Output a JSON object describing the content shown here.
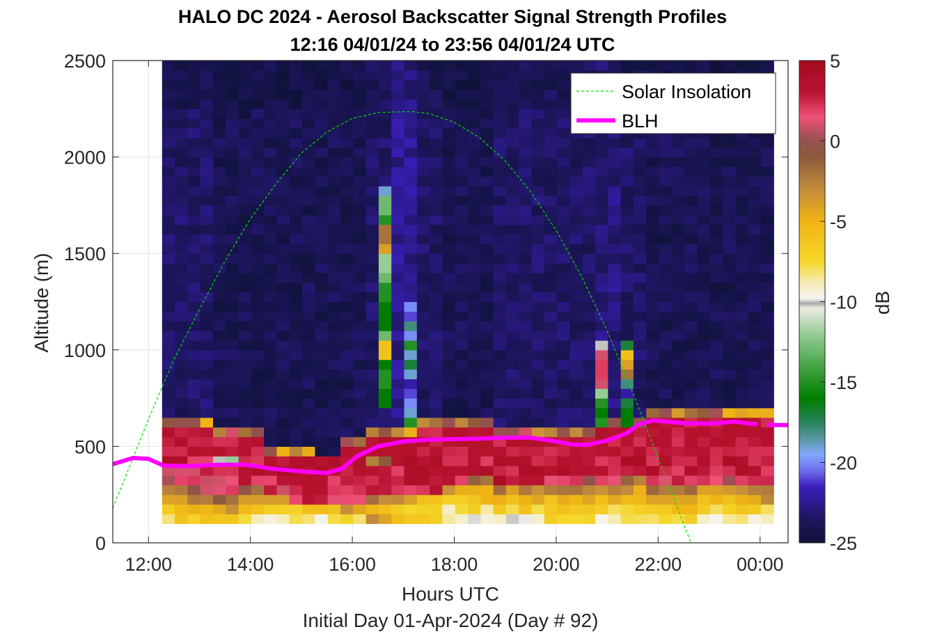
{
  "chart_data": {
    "type": "heatmap",
    "title": "HALO DC 2024 - Aerosol Backscatter Signal Strength Profiles",
    "subtitle": "12:16 04/01/24 to 23:56 04/01/24  UTC",
    "xlabel": "Hours UTC",
    "xsublabel": "Initial Day 01-Apr-2024 (Day # 92)",
    "ylabel": "Altitude (m)",
    "colorbar_label": "dB",
    "xlim_hours": [
      11.3,
      24.55
    ],
    "ylim": [
      0,
      2500
    ],
    "x_ticks": [
      {
        "value": 12,
        "label": "12:00"
      },
      {
        "value": 14,
        "label": "14:00"
      },
      {
        "value": 16,
        "label": "16:00"
      },
      {
        "value": 18,
        "label": "18:00"
      },
      {
        "value": 20,
        "label": "20:00"
      },
      {
        "value": 22,
        "label": "22:00"
      },
      {
        "value": 24,
        "label": "00:00"
      }
    ],
    "y_ticks": [
      0,
      500,
      1000,
      1500,
      2000,
      2500
    ],
    "colorbar_ticks": [
      5,
      0,
      -5,
      -10,
      -15,
      -20,
      -25
    ],
    "clim": [
      -25,
      5
    ],
    "grid": true,
    "legend_position": "top-right",
    "legend": [
      {
        "label": "Solar Insolation",
        "color": "#00dd00",
        "style": "dashed"
      },
      {
        "label": "BLH",
        "color": "#ff00ff",
        "style": "solid"
      }
    ],
    "heatmap": {
      "x_start_hours": 12.27,
      "bin_hours": 0.5,
      "bins_per_column": 2,
      "y_start_m": 100,
      "bin_m": 50,
      "nlevels": 48,
      "units": "dB",
      "columns": [
        {
          "time": "12:16",
          "surface": [
            -7,
            -6,
            -3,
            -2,
            1,
            2,
            3
          ],
          "bl_top": 620,
          "aloft": -23.5
        },
        {
          "time": "12:46",
          "surface": [
            -6,
            -5,
            -2,
            0,
            2,
            2,
            3
          ],
          "bl_top": 610,
          "aloft": -23.5
        },
        {
          "time": "13:16",
          "surface": [
            -6,
            -4,
            -2,
            1,
            2,
            3,
            -11
          ],
          "bl_top": 590,
          "aloft": -24
        },
        {
          "time": "13:46",
          "surface": [
            -8,
            -6,
            -4,
            -1,
            2,
            3,
            3
          ],
          "bl_top": 560,
          "aloft": -24
        },
        {
          "time": "14:16",
          "surface": [
            -9,
            -7,
            -4,
            2,
            3,
            3,
            3
          ],
          "bl_top": 480,
          "aloft": -24
        },
        {
          "time": "14:46",
          "surface": [
            -9,
            -6,
            2,
            3,
            3,
            3,
            3
          ],
          "bl_top": 460,
          "aloft": -24
        },
        {
          "time": "15:16",
          "surface": [
            -9,
            -6,
            2,
            3,
            3,
            3,
            3
          ],
          "bl_top": 440,
          "aloft": -24
        },
        {
          "time": "15:46",
          "surface": [
            -8,
            -4,
            1,
            3,
            3,
            3,
            3
          ],
          "bl_top": 520,
          "aloft": -24
        },
        {
          "time": "16:16",
          "surface": [
            -4,
            -5,
            -3,
            3,
            3,
            3,
            -2
          ],
          "bl_top": 600,
          "aloft": -23.5
        },
        {
          "time": "16:46",
          "surface": [
            -6,
            -8,
            -4,
            3,
            3,
            3,
            3
          ],
          "bl_top": 560,
          "aloft": -22.5
        },
        {
          "time": "17:16",
          "surface": [
            -7,
            -8,
            -6,
            3,
            3,
            3,
            3
          ],
          "bl_top": 630,
          "aloft": -23.5
        },
        {
          "time": "17:46",
          "surface": [
            -9,
            -8,
            -6,
            -4,
            2,
            3,
            3
          ],
          "bl_top": 640,
          "aloft": -24
        },
        {
          "time": "18:16",
          "surface": [
            -9,
            -8,
            -6,
            -4,
            -2,
            3,
            3
          ],
          "bl_top": 620,
          "aloft": -24
        },
        {
          "time": "18:46",
          "surface": [
            -9,
            -7,
            -5,
            -3,
            3,
            3,
            3
          ],
          "bl_top": 600,
          "aloft": -23.5
        },
        {
          "time": "19:16",
          "surface": [
            -9,
            -7,
            -5,
            -3,
            3,
            3,
            3
          ],
          "bl_top": 600,
          "aloft": -23.5
        },
        {
          "time": "19:46",
          "surface": [
            -8,
            -6,
            -5,
            -3,
            2,
            3,
            3
          ],
          "bl_top": 580,
          "aloft": -23.5
        },
        {
          "time": "20:16",
          "surface": [
            -7,
            -6,
            -4,
            -2,
            1,
            3,
            3
          ],
          "bl_top": 560,
          "aloft": -23.5
        },
        {
          "time": "20:46",
          "surface": [
            -9,
            -7,
            -5,
            -3,
            1,
            3,
            3
          ],
          "bl_top": 610,
          "aloft": -23
        },
        {
          "time": "21:16",
          "surface": [
            -9,
            -8,
            -6,
            -4,
            -2,
            2,
            3
          ],
          "bl_top": 640,
          "aloft": -23.5
        },
        {
          "time": "21:46",
          "surface": [
            -8,
            -6,
            -4,
            -2,
            2,
            3,
            3
          ],
          "bl_top": 680,
          "aloft": -24
        },
        {
          "time": "22:16",
          "surface": [
            -8,
            -6,
            -4,
            -2,
            2,
            3,
            3
          ],
          "bl_top": 680,
          "aloft": -24
        },
        {
          "time": "22:46",
          "surface": [
            -9,
            -7,
            -5,
            -3,
            2,
            3,
            3
          ],
          "bl_top": 680,
          "aloft": -24
        },
        {
          "time": "23:16",
          "surface": [
            -9,
            -7,
            -6,
            -3,
            1,
            3,
            3
          ],
          "bl_top": 680,
          "aloft": -24
        },
        {
          "time": "23:46",
          "surface": [
            -9,
            -7,
            -4,
            -2,
            2,
            3,
            3
          ],
          "bl_top": 680,
          "aloft": -24
        }
      ],
      "features": [
        {
          "time": "16:31",
          "bottom_m": 700,
          "top_m": 1850,
          "values": [
            -16,
            -15,
            -16,
            -6,
            -13,
            -16,
            -16,
            -15,
            -13,
            -12,
            -4,
            -2,
            -15,
            -13,
            -19
          ]
        },
        {
          "time": "17:01",
          "bottom_m": 600,
          "top_m": 1250,
          "values": [
            -15,
            -19,
            -20,
            -21,
            -22,
            -19,
            -17,
            -19,
            -15,
            -20,
            -18,
            -21,
            -20
          ]
        },
        {
          "time": "20:46",
          "bottom_m": 600,
          "top_m": 1050,
          "values": [
            -15,
            -16,
            -15,
            -12,
            1,
            2,
            2,
            1,
            -10
          ]
        },
        {
          "time": "21:16",
          "bottom_m": 600,
          "top_m": 1050,
          "values": [
            -16,
            -17,
            -22,
            -18,
            -2,
            -4,
            -6,
            -17
          ]
        }
      ]
    },
    "series": [
      {
        "name": "BLH",
        "x": [
          11.3,
          11.7,
          12.0,
          12.3,
          12.8,
          13.4,
          13.9,
          14.4,
          15.0,
          15.5,
          15.8,
          16.1,
          16.5,
          17.0,
          17.5,
          18.0,
          18.5,
          19.0,
          19.5,
          19.9,
          20.3,
          20.6,
          21.0,
          21.4,
          21.6,
          21.9,
          22.1,
          22.5,
          23.0,
          23.5,
          23.8,
          24.1,
          24.55
        ],
        "y": [
          408,
          440,
          435,
          400,
          398,
          405,
          405,
          385,
          370,
          362,
          385,
          450,
          500,
          525,
          535,
          538,
          540,
          545,
          545,
          530,
          510,
          508,
          530,
          570,
          612,
          635,
          630,
          620,
          618,
          628,
          618,
          612,
          610
        ]
      },
      {
        "name": "Solar Insolation",
        "x": [
          11.3,
          11.5,
          12.0,
          12.5,
          13.0,
          13.5,
          14.0,
          14.5,
          15.0,
          15.5,
          16.0,
          16.5,
          17.0,
          17.2,
          17.5,
          18.0,
          18.5,
          19.0,
          19.5,
          20.0,
          20.5,
          21.0,
          21.5,
          22.0,
          22.5,
          23.0,
          23.4,
          23.7,
          24.55
        ],
        "y": [
          180,
          310,
          640,
          950,
          1210,
          1460,
          1680,
          1860,
          2020,
          2130,
          2200,
          2230,
          2235,
          2235,
          2225,
          2180,
          2100,
          1980,
          1820,
          1620,
          1380,
          1100,
          780,
          440,
          100,
          -250,
          -520,
          0,
          0
        ]
      }
    ]
  }
}
